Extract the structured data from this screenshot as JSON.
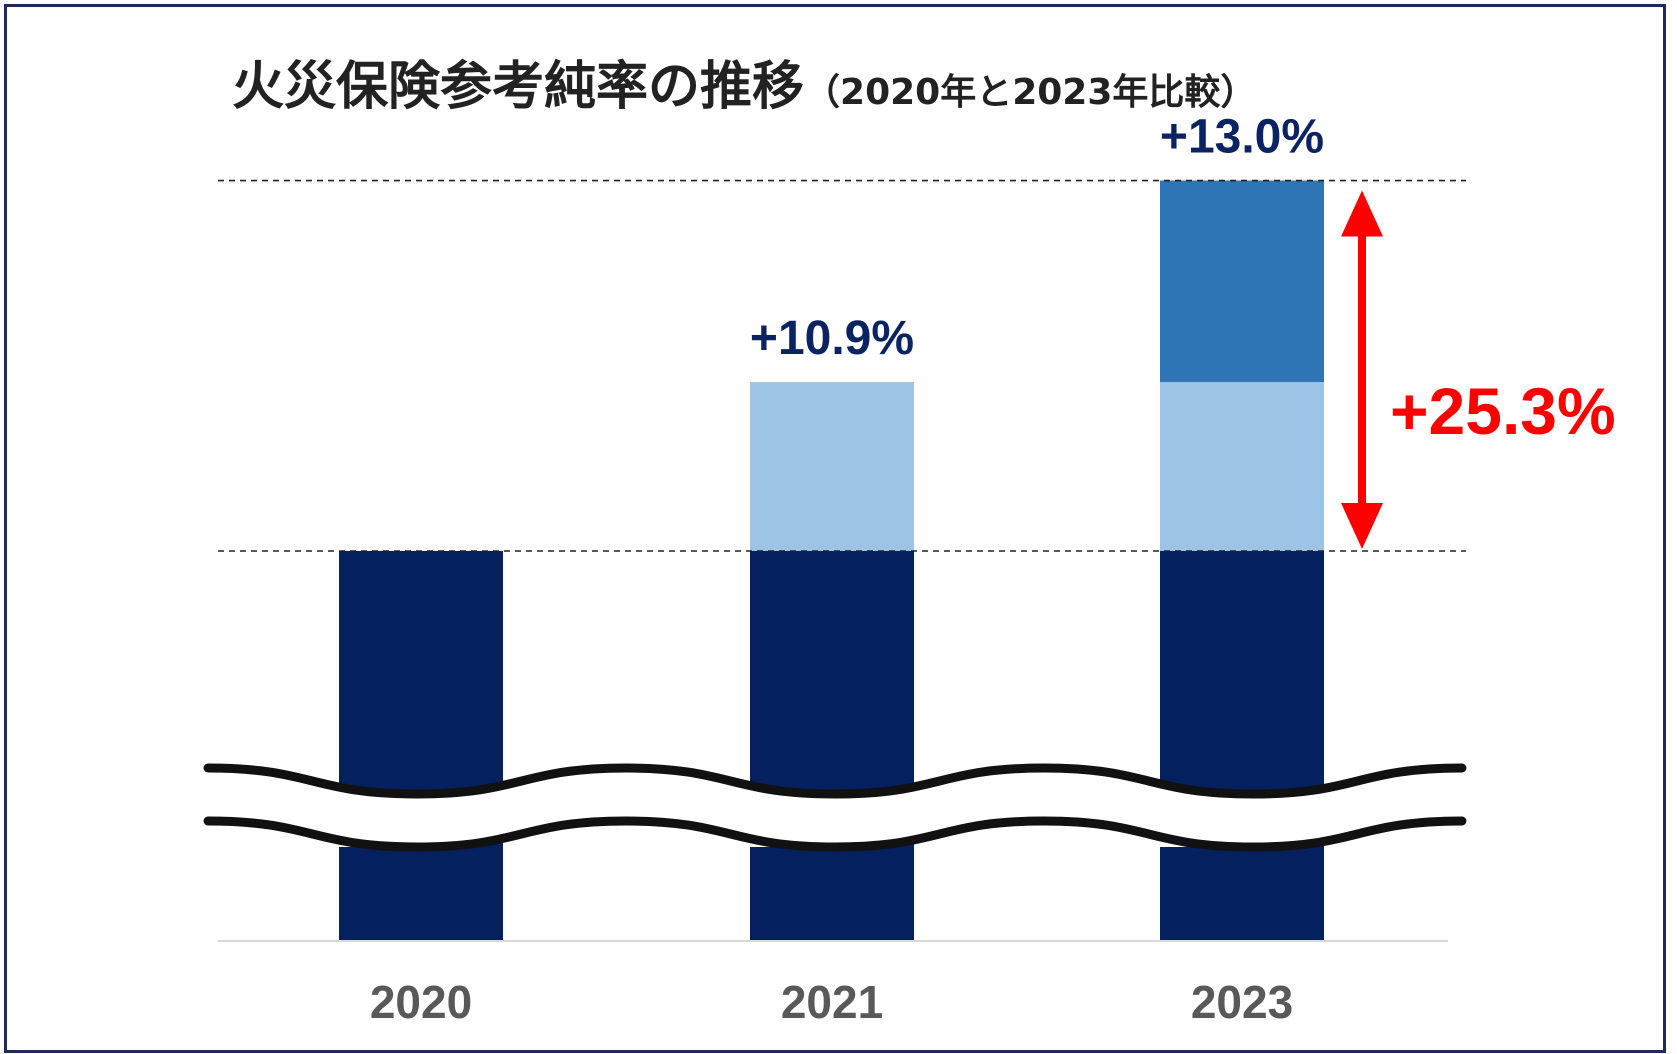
{
  "title": {
    "main": "火災保険参考純率の推移",
    "sub": "（2020年と2023年比較）"
  },
  "colors": {
    "base": "#05205e",
    "increase_2021": "#9dc3e6",
    "increase_2023": "#2e75b6",
    "label": "#0b2363",
    "total": "#ff0000",
    "axis_text": "#595959",
    "frame": "#1f2a5c"
  },
  "chart_data": {
    "type": "bar",
    "stacked": true,
    "axis_break": true,
    "categories": [
      "2020",
      "2021",
      "2023"
    ],
    "series": [
      {
        "values": [
          100,
          100,
          100
        ],
        "color": "#05205e"
      },
      {
        "values": [
          0,
          10.9,
          10.9
        ],
        "color": "#9dc3e6"
      },
      {
        "values": [
          0,
          0,
          13.0
        ],
        "color": "#2e75b6"
      }
    ],
    "data_labels": [
      "",
      "+10.9%",
      "+13.0%"
    ],
    "total_change_label": "+25.3%",
    "ylabel": "",
    "xlabel": ""
  }
}
